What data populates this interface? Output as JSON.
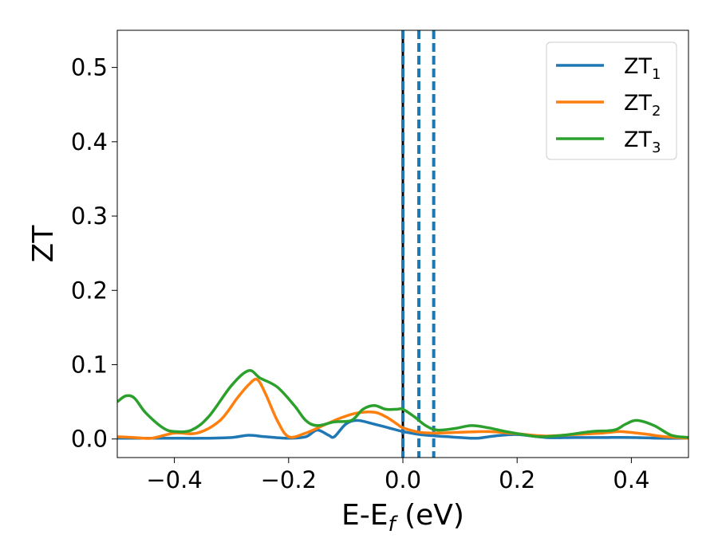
{
  "chart_data": {
    "type": "line",
    "xlabel": "E-E",
    "xlabel_sub": "f",
    "xlabel_unit": " (eV)",
    "ylabel": "ZT",
    "xlim": [
      -0.5,
      0.5
    ],
    "ylim": [
      -0.025,
      0.55
    ],
    "xticks": [
      -0.4,
      -0.2,
      0.0,
      0.2,
      0.4
    ],
    "xtick_labels": [
      "−0.4",
      "−0.2",
      "0.0",
      "0.2",
      "0.4"
    ],
    "yticks": [
      0.0,
      0.1,
      0.2,
      0.3,
      0.4,
      0.5
    ],
    "ytick_labels": [
      "0.0",
      "0.1",
      "0.2",
      "0.3",
      "0.4",
      "0.5"
    ],
    "legend_position": "top-right",
    "grid": false,
    "vertical_lines": [
      {
        "x": 0.0,
        "style": "solid",
        "color": "#000000"
      },
      {
        "x": 0.0,
        "style": "dashed",
        "color": "#1f77b4"
      },
      {
        "x": 0.028,
        "style": "dashed",
        "color": "#1f77b4"
      },
      {
        "x": 0.054,
        "style": "dashed",
        "color": "#1f77b4"
      }
    ],
    "series": [
      {
        "name": "ZT",
        "name_sub": "1",
        "color": "#1f77b4",
        "x": [
          -0.5,
          -0.45,
          -0.4,
          -0.35,
          -0.3,
          -0.27,
          -0.24,
          -0.2,
          -0.17,
          -0.15,
          -0.13,
          -0.12,
          -0.1,
          -0.08,
          -0.05,
          -0.02,
          0.0,
          0.03,
          0.06,
          0.08,
          0.1,
          0.13,
          0.16,
          0.2,
          0.25,
          0.3,
          0.35,
          0.4,
          0.45,
          0.5
        ],
        "y": [
          0.001,
          0.001,
          0.001,
          0.001,
          0.002,
          0.005,
          0.003,
          0.001,
          0.003,
          0.012,
          0.005,
          0.003,
          0.02,
          0.025,
          0.02,
          0.014,
          0.01,
          0.006,
          0.004,
          0.003,
          0.002,
          0.001,
          0.004,
          0.006,
          0.002,
          0.002,
          0.002,
          0.002,
          0.001,
          0.001
        ]
      },
      {
        "name": "ZT",
        "name_sub": "2",
        "color": "#ff7f0e",
        "x": [
          -0.5,
          -0.47,
          -0.44,
          -0.4,
          -0.36,
          -0.32,
          -0.29,
          -0.27,
          -0.255,
          -0.24,
          -0.22,
          -0.2,
          -0.17,
          -0.14,
          -0.11,
          -0.08,
          -0.05,
          -0.03,
          -0.01,
          0.0,
          0.03,
          0.06,
          0.1,
          0.15,
          0.2,
          0.25,
          0.3,
          0.35,
          0.38,
          0.42,
          0.46,
          0.5
        ],
        "y": [
          0.003,
          0.002,
          0.001,
          0.008,
          0.008,
          0.025,
          0.055,
          0.073,
          0.08,
          0.06,
          0.025,
          0.003,
          0.008,
          0.018,
          0.028,
          0.035,
          0.036,
          0.03,
          0.02,
          0.015,
          0.009,
          0.008,
          0.009,
          0.01,
          0.007,
          0.004,
          0.006,
          0.008,
          0.01,
          0.007,
          0.003,
          0.001
        ]
      },
      {
        "name": "ZT",
        "name_sub": "3",
        "color": "#2ca02c",
        "x": [
          -0.5,
          -0.485,
          -0.47,
          -0.45,
          -0.42,
          -0.4,
          -0.37,
          -0.34,
          -0.3,
          -0.27,
          -0.25,
          -0.22,
          -0.19,
          -0.17,
          -0.15,
          -0.12,
          -0.09,
          -0.07,
          -0.05,
          -0.03,
          -0.01,
          0.0,
          0.02,
          0.04,
          0.06,
          0.09,
          0.12,
          0.15,
          0.18,
          0.21,
          0.24,
          0.28,
          0.33,
          0.37,
          0.39,
          0.41,
          0.44,
          0.47,
          0.5
        ],
        "y": [
          0.05,
          0.058,
          0.055,
          0.035,
          0.015,
          0.01,
          0.012,
          0.03,
          0.072,
          0.092,
          0.082,
          0.07,
          0.045,
          0.025,
          0.018,
          0.023,
          0.025,
          0.04,
          0.045,
          0.04,
          0.04,
          0.04,
          0.03,
          0.018,
          0.012,
          0.014,
          0.018,
          0.015,
          0.01,
          0.006,
          0.003,
          0.005,
          0.01,
          0.012,
          0.02,
          0.025,
          0.018,
          0.005,
          0.002
        ]
      }
    ]
  }
}
